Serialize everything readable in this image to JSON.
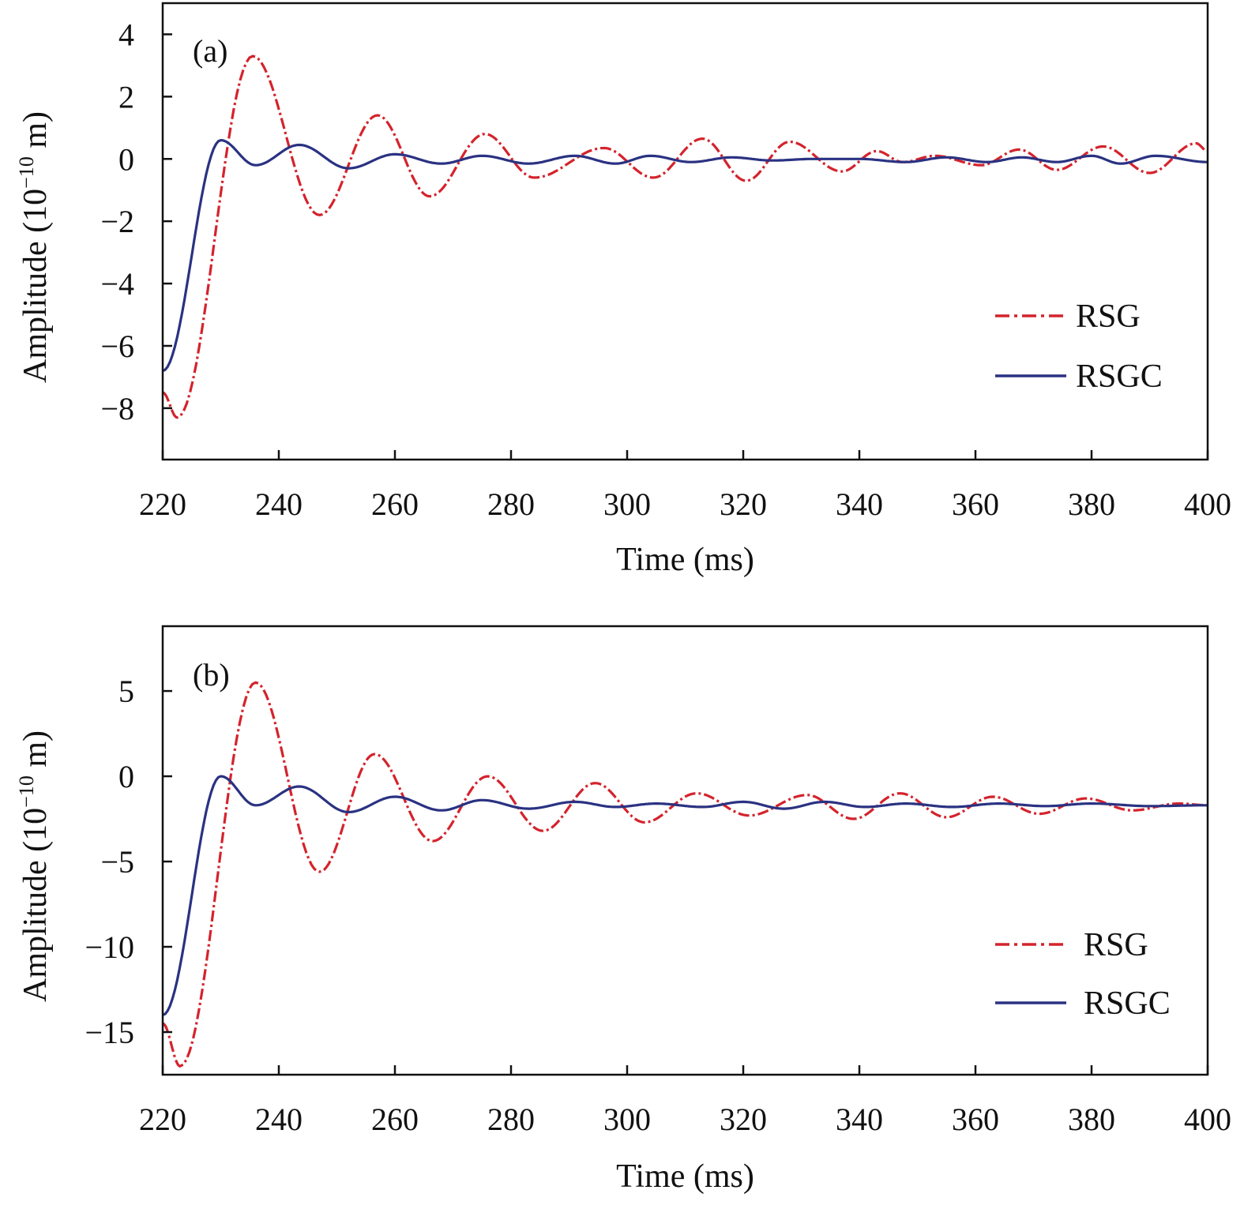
{
  "chart_data": [
    {
      "type": "line",
      "panel_label": "(a)",
      "xlabel": "Time (ms)",
      "ylabel": "Amplitude (10",
      "ylabel_sup": "−10",
      "ylabel_tail": " m)",
      "xlim": [
        220,
        400
      ],
      "ylim": [
        -9.65,
        5.0
      ],
      "xticks": [
        220,
        240,
        260,
        280,
        300,
        320,
        340,
        360,
        380,
        400
      ],
      "yticks": [
        4,
        2,
        0,
        -2,
        -4,
        -6,
        -8
      ],
      "ytick_labels": [
        "4",
        "2",
        "0",
        "−2",
        "−4",
        "−6",
        "−8"
      ],
      "grid": false,
      "legend_placement": "right",
      "series": [
        {
          "name": "RSG",
          "color": "#d4232c",
          "style": "dash-dot",
          "points": [
            [
              220,
              -7.5
            ],
            [
              222.5,
              -8.3
            ],
            [
              235.5,
              3.3
            ],
            [
              247,
              -1.8
            ],
            [
              257,
              1.4
            ],
            [
              266,
              -1.2
            ],
            [
              275.5,
              0.8
            ],
            [
              284,
              -0.6
            ],
            [
              296,
              0.35
            ],
            [
              304.5,
              -0.6
            ],
            [
              313,
              0.65
            ],
            [
              320.5,
              -0.7
            ],
            [
              328,
              0.55
            ],
            [
              337,
              -0.4
            ],
            [
              343,
              0.25
            ],
            [
              347.5,
              -0.1
            ],
            [
              353,
              0.1
            ],
            [
              361,
              -0.2
            ],
            [
              367.5,
              0.3
            ],
            [
              374,
              -0.35
            ],
            [
              382,
              0.4
            ],
            [
              390,
              -0.45
            ],
            [
              398,
              0.5
            ],
            [
              400,
              0.25
            ]
          ]
        },
        {
          "name": "RSGC",
          "color": "#2a3282",
          "style": "solid",
          "points": [
            [
              220,
              -6.8
            ],
            [
              230,
              0.6
            ],
            [
              236,
              -0.2
            ],
            [
              243.5,
              0.45
            ],
            [
              252,
              -0.3
            ],
            [
              260,
              0.15
            ],
            [
              268,
              -0.15
            ],
            [
              275,
              0.1
            ],
            [
              283,
              -0.15
            ],
            [
              291,
              0.1
            ],
            [
              298,
              -0.15
            ],
            [
              304,
              0.1
            ],
            [
              311,
              -0.1
            ],
            [
              318,
              0.05
            ],
            [
              325,
              -0.05
            ],
            [
              332,
              0.0
            ],
            [
              340,
              0.0
            ],
            [
              348,
              -0.1
            ],
            [
              355,
              0.05
            ],
            [
              362,
              -0.1
            ],
            [
              368,
              0.05
            ],
            [
              374,
              -0.1
            ],
            [
              380,
              0.1
            ],
            [
              385,
              -0.15
            ],
            [
              391,
              0.1
            ],
            [
              400,
              -0.1
            ]
          ]
        }
      ]
    },
    {
      "type": "line",
      "panel_label": "(b)",
      "xlabel": "Time (ms)",
      "ylabel": "Amplitude (10",
      "ylabel_sup": "−10",
      "ylabel_tail": " m)",
      "xlim": [
        220,
        400
      ],
      "ylim": [
        -17.5,
        8.8
      ],
      "xticks": [
        220,
        240,
        260,
        280,
        300,
        320,
        340,
        360,
        380,
        400
      ],
      "yticks": [
        5,
        0,
        -5,
        -10,
        -15
      ],
      "ytick_labels": [
        "5",
        "0",
        "−5",
        "−10",
        "−15"
      ],
      "grid": false,
      "legend_placement": "right",
      "series": [
        {
          "name": "RSG",
          "color": "#d4232c",
          "style": "dash-dot",
          "points": [
            [
              220,
              -14.5
            ],
            [
              223,
              -17
            ],
            [
              236,
              5.5
            ],
            [
              247,
              -5.6
            ],
            [
              256.5,
              1.3
            ],
            [
              266.5,
              -3.8
            ],
            [
              276,
              0
            ],
            [
              285.5,
              -3.2
            ],
            [
              294.5,
              -0.4
            ],
            [
              303,
              -2.7
            ],
            [
              312,
              -1.0
            ],
            [
              321,
              -2.3
            ],
            [
              331,
              -1.1
            ],
            [
              339,
              -2.5
            ],
            [
              347,
              -1.0
            ],
            [
              355,
              -2.4
            ],
            [
              363,
              -1.2
            ],
            [
              371,
              -2.2
            ],
            [
              379,
              -1.3
            ],
            [
              387,
              -2.0
            ],
            [
              395,
              -1.6
            ],
            [
              400,
              -1.7
            ]
          ]
        },
        {
          "name": "RSGC",
          "color": "#2a3282",
          "style": "solid",
          "points": [
            [
              220,
              -14
            ],
            [
              230,
              0
            ],
            [
              236,
              -1.7
            ],
            [
              243.5,
              -0.6
            ],
            [
              252,
              -2.1
            ],
            [
              260,
              -1.2
            ],
            [
              268,
              -2.0
            ],
            [
              275,
              -1.4
            ],
            [
              283,
              -1.9
            ],
            [
              291,
              -1.5
            ],
            [
              298,
              -1.8
            ],
            [
              305,
              -1.6
            ],
            [
              313,
              -1.8
            ],
            [
              320,
              -1.5
            ],
            [
              327,
              -1.9
            ],
            [
              334,
              -1.5
            ],
            [
              341,
              -1.8
            ],
            [
              348,
              -1.6
            ],
            [
              356,
              -1.8
            ],
            [
              364,
              -1.6
            ],
            [
              372,
              -1.75
            ],
            [
              380,
              -1.6
            ],
            [
              390,
              -1.75
            ],
            [
              400,
              -1.7
            ]
          ]
        }
      ]
    }
  ]
}
